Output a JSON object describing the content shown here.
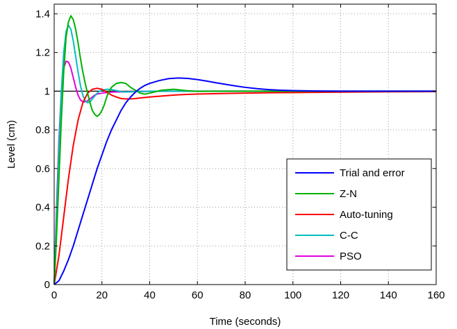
{
  "chart_data": {
    "type": "line",
    "title": "",
    "xlabel": "Time (seconds)",
    "ylabel": "Level (cm)",
    "xlim": [
      0,
      160
    ],
    "ylim": [
      0,
      1.45
    ],
    "xticks": [
      0,
      20,
      40,
      60,
      80,
      100,
      120,
      140,
      160
    ],
    "xtick_labels": [
      "0",
      "20",
      "40",
      "60",
      "80",
      "100",
      "120",
      "140",
      "160"
    ],
    "yticks": [
      0,
      0.2,
      0.4,
      0.6,
      0.8,
      1,
      1.2,
      1.4
    ],
    "ytick_labels": [
      "0",
      "0.2",
      "0.4",
      "0.6",
      "0.8",
      "1",
      "1.2",
      "1.4"
    ],
    "grid": true,
    "legend_position": "bottom-right",
    "reference_line": {
      "y": 1,
      "color": "#000000"
    },
    "series": [
      {
        "name": "Trial and error",
        "color": "#0000ff",
        "x": [
          0,
          2,
          4,
          6,
          8,
          10,
          12,
          14,
          16,
          18,
          20,
          22,
          24,
          26,
          28,
          30,
          32,
          34,
          36,
          38,
          40,
          44,
          48,
          52,
          56,
          60,
          64,
          68,
          72,
          76,
          80,
          85,
          90,
          95,
          100,
          110,
          120,
          130,
          140,
          150,
          160
        ],
        "y": [
          0,
          0.02,
          0.07,
          0.13,
          0.2,
          0.28,
          0.36,
          0.44,
          0.52,
          0.6,
          0.67,
          0.74,
          0.8,
          0.85,
          0.9,
          0.94,
          0.97,
          0.995,
          1.015,
          1.03,
          1.04,
          1.055,
          1.065,
          1.068,
          1.066,
          1.06,
          1.052,
          1.043,
          1.035,
          1.027,
          1.02,
          1.013,
          1.008,
          1.005,
          1.003,
          1.001,
          1.0,
          1.0,
          1.0,
          1.0,
          1.0
        ]
      },
      {
        "name": "Z-N",
        "color": "#00b000",
        "x": [
          0,
          1,
          2,
          3,
          4,
          5,
          6,
          7,
          8,
          9,
          10,
          11,
          12,
          13,
          14,
          15,
          16,
          17,
          18,
          19,
          20,
          21,
          22,
          23,
          24,
          26,
          28,
          30,
          32,
          34,
          36,
          38,
          40,
          45,
          50,
          55,
          60,
          70,
          80,
          100,
          120,
          140,
          160
        ],
        "y": [
          0,
          0.25,
          0.55,
          0.85,
          1.1,
          1.28,
          1.36,
          1.39,
          1.37,
          1.32,
          1.25,
          1.17,
          1.1,
          1.04,
          0.99,
          0.94,
          0.9,
          0.88,
          0.87,
          0.88,
          0.9,
          0.93,
          0.97,
          1.0,
          1.02,
          1.04,
          1.045,
          1.04,
          1.02,
          1.005,
          0.99,
          0.985,
          0.99,
          1.005,
          1.01,
          1.003,
          0.999,
          1.0,
          1.0,
          1.0,
          1.0,
          1.0,
          1.0
        ]
      },
      {
        "name": "Auto-tuning",
        "color": "#ff0000",
        "x": [
          0,
          2,
          4,
          6,
          8,
          10,
          12,
          14,
          16,
          18,
          20,
          22,
          24,
          26,
          28,
          30,
          32,
          34,
          36,
          40,
          45,
          50,
          55,
          60,
          70,
          80,
          90,
          100,
          120,
          140,
          160
        ],
        "y": [
          0,
          0.15,
          0.35,
          0.55,
          0.72,
          0.85,
          0.94,
          0.99,
          1.01,
          1.015,
          1.01,
          0.995,
          0.98,
          0.97,
          0.962,
          0.96,
          0.96,
          0.962,
          0.965,
          0.97,
          0.975,
          0.98,
          0.983,
          0.985,
          0.988,
          0.99,
          0.992,
          0.993,
          0.995,
          0.997,
          0.998
        ]
      },
      {
        "name": "C-C",
        "color": "#00bfbf",
        "x": [
          0,
          1,
          2,
          3,
          4,
          5,
          6,
          7,
          8,
          9,
          10,
          11,
          12,
          13,
          14,
          15,
          16,
          17,
          18,
          19,
          20,
          22,
          24,
          26,
          28,
          30,
          35,
          40,
          50,
          60,
          80,
          100,
          120,
          140,
          160
        ],
        "y": [
          0,
          0.35,
          0.7,
          1.0,
          1.2,
          1.31,
          1.34,
          1.32,
          1.26,
          1.18,
          1.1,
          1.03,
          0.98,
          0.95,
          0.94,
          0.945,
          0.96,
          0.975,
          0.99,
          1.0,
          1.005,
          1.01,
          1.008,
          1.003,
          0.998,
          0.996,
          0.998,
          1.0,
          1.0,
          1.0,
          1.0,
          1.0,
          1.0,
          1.0,
          1.0
        ]
      },
      {
        "name": "PSO",
        "color": "#e000e0",
        "x": [
          0,
          1,
          2,
          3,
          4,
          5,
          6,
          7,
          8,
          9,
          10,
          11,
          12,
          13,
          14,
          15,
          16,
          17,
          18,
          20,
          22,
          24,
          26,
          30,
          35,
          40,
          50,
          60,
          80,
          100,
          120,
          140,
          160
        ],
        "y": [
          0,
          0.4,
          0.75,
          1.0,
          1.12,
          1.155,
          1.15,
          1.12,
          1.07,
          1.02,
          0.98,
          0.955,
          0.945,
          0.945,
          0.95,
          0.96,
          0.97,
          0.98,
          0.985,
          0.99,
          0.993,
          0.995,
          0.996,
          0.997,
          0.998,
          0.999,
          1.0,
          1.0,
          1.0,
          1.0,
          1.0,
          1.0,
          1.0
        ]
      }
    ]
  }
}
